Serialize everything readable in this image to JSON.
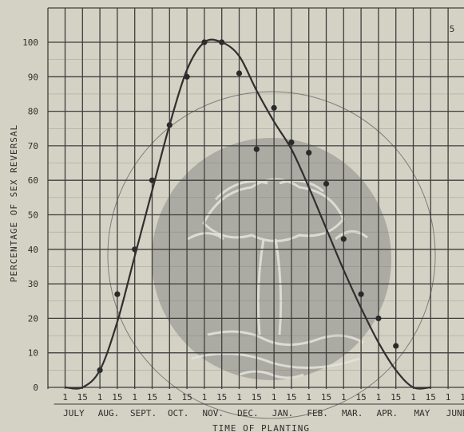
{
  "chart_data": {
    "type": "line",
    "title": "",
    "xlabel": "TIME OF PLANTING",
    "ylabel": "PERCENTAGE OF SEX REVERSAL",
    "ylim": [
      0,
      100
    ],
    "yticks": [
      "0",
      "10",
      "20",
      "30",
      "40",
      "50",
      "60",
      "70",
      "80",
      "90",
      "100"
    ],
    "xtick_labels": [
      "1",
      "15",
      "1",
      "15",
      "1",
      "15",
      "1",
      "15",
      "1",
      "15",
      "1",
      "15",
      "1",
      "15",
      "1",
      "15",
      "1",
      "15",
      "1",
      "15",
      "1",
      "15",
      "1",
      "15"
    ],
    "months": [
      "JULY",
      "AUG.",
      "SEPT.",
      "OCT.",
      "NOV.",
      "DEC.",
      "JAN.",
      "FEB.",
      "MAR.",
      "APR.",
      "MAY",
      "JUNE"
    ],
    "grid": true,
    "corner_mark": "5",
    "series": [
      {
        "style": "points",
        "x": [
          "Aug 1",
          "Aug 15",
          "Sept 1",
          "Sept 15",
          "Oct 1",
          "Oct 15",
          "Nov 1",
          "Nov 15",
          "Dec 1",
          "Dec 15",
          "Jan 1",
          "Jan 15",
          "Feb 1",
          "Feb 15",
          "Mar 1",
          "Mar 15",
          "Apr 1",
          "Apr 15"
        ],
        "values": [
          5,
          27,
          40,
          60,
          76,
          90,
          100,
          100,
          91,
          69,
          81,
          71,
          68,
          59,
          43,
          27,
          20,
          12
        ]
      },
      {
        "style": "smooth-line",
        "x": [
          "July 1",
          "July 15",
          "Aug 1",
          "Aug 15",
          "Sept 1",
          "Sept 15",
          "Oct 1",
          "Oct 15",
          "Nov 1",
          "Nov 15",
          "Dec 1",
          "Dec 15",
          "Jan 1",
          "Jan 15",
          "Feb 1",
          "Feb 15",
          "Mar 1",
          "Mar 15",
          "Apr 1",
          "Apr 15",
          "May 1",
          "May 15"
        ],
        "values": [
          0,
          0,
          5,
          19,
          38,
          57,
          76,
          92,
          100,
          100,
          96,
          86,
          77,
          69,
          58,
          46,
          34,
          23,
          13,
          5,
          0,
          0
        ]
      }
    ]
  }
}
